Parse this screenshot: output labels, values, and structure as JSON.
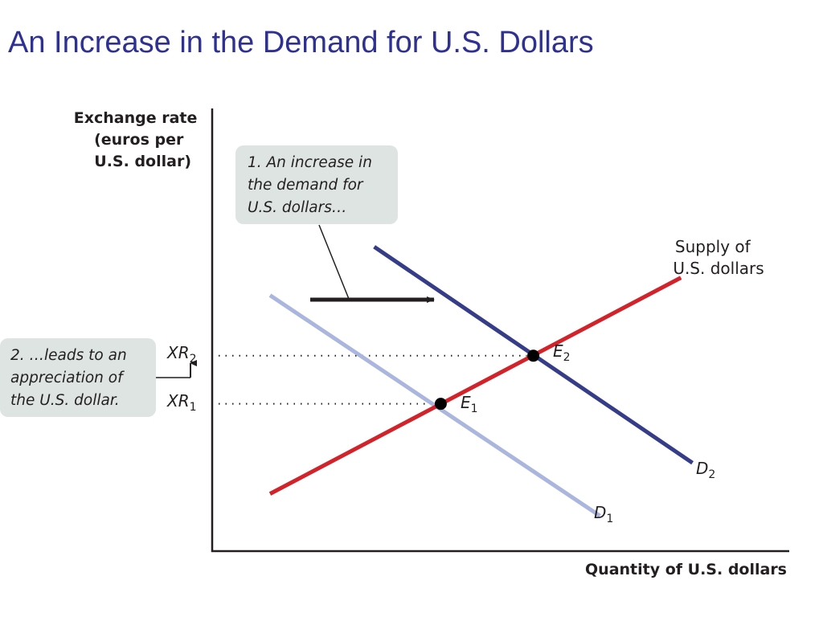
{
  "slide": {
    "title": "An Increase in the Demand for U.S. Dollars"
  },
  "colors": {
    "title": "#2e3192",
    "supply": "#d2232a",
    "demand1": "#aab6dd",
    "demand2": "#353c88",
    "callout": "#dde4e2"
  },
  "chart_data": {
    "type": "line",
    "title": "An Increase in the Demand for U.S. Dollars",
    "ylabel_lines": [
      "Exchange rate",
      "(euros per",
      "U.S. dollar)"
    ],
    "xlabel": "Quantity of U.S. dollars",
    "xlim": [
      0,
      100
    ],
    "ylim": [
      0,
      100
    ],
    "series": [
      {
        "name": "D1",
        "label": "D",
        "sub": "1",
        "color": "#aab6dd",
        "points": [
          [
            10,
            58
          ],
          [
            67,
            8
          ]
        ]
      },
      {
        "name": "D2",
        "label": "D",
        "sub": "2",
        "color": "#353c88",
        "points": [
          [
            28,
            69
          ],
          [
            83,
            20
          ]
        ]
      },
      {
        "name": "Supply of U.S. dollars",
        "label_lines": [
          "Supply of",
          "U.S. dollars"
        ],
        "color": "#d2232a",
        "points": [
          [
            10,
            13
          ],
          [
            81,
            62
          ]
        ]
      }
    ],
    "equilibria": [
      {
        "name": "E1",
        "label": "E",
        "sub": "1",
        "x": 39.5,
        "y": 33.4
      },
      {
        "name": "E2",
        "label": "E",
        "sub": "2",
        "x": 55.5,
        "y": 44.3
      }
    ],
    "y_ticks": [
      {
        "name": "XR1",
        "label": "XR",
        "sub": "1",
        "y": 33.4
      },
      {
        "name": "XR2",
        "label": "XR",
        "sub": "2",
        "y": 44.3
      }
    ],
    "annotations": [
      {
        "name": "demand-increase",
        "lines": [
          "1. An increase in",
          "the demand for",
          "U.S. dollars…"
        ]
      },
      {
        "name": "appreciation",
        "lines": [
          "2. …leads to an",
          "appreciation of",
          "the U.S. dollar."
        ]
      }
    ]
  }
}
